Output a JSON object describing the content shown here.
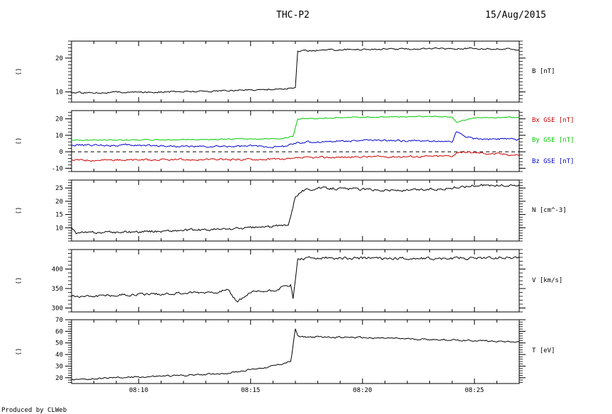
{
  "header": {
    "title": "THC-P2",
    "date": "15/Aug/2015"
  },
  "footer": {
    "produced_by": "Produced by CLWeb"
  },
  "colors": {
    "axes": "#000000",
    "red": "#cc0000",
    "green": "#00cc00",
    "blue": "#0000cc"
  },
  "chart_data": [
    {
      "type": "line",
      "ylabel_left": "()",
      "ylim": [
        7,
        25
      ],
      "yticks": [
        10,
        20
      ],
      "xlim": [
        "08:07",
        "08:27"
      ],
      "xticks": [
        "08:10",
        "08:15",
        "08:20",
        "08:25"
      ],
      "series": [
        {
          "name": "B [nT]",
          "color": "#000000",
          "x": [
            "08:07",
            "08:08",
            "08:09",
            "08:10",
            "08:11",
            "08:12",
            "08:13",
            "08:14",
            "08:15",
            "08:16",
            "08:16.8",
            "08:17.0",
            "08:17.1",
            "08:18",
            "08:19",
            "08:20",
            "08:21",
            "08:22",
            "08:23",
            "08:24",
            "08:25",
            "08:26",
            "08:27"
          ],
          "values": [
            9.8,
            9.8,
            9.9,
            9.9,
            10.0,
            10.1,
            10.2,
            10.4,
            10.6,
            10.8,
            11.0,
            11.2,
            22.0,
            22.3,
            22.5,
            22.6,
            22.6,
            22.7,
            22.8,
            22.8,
            22.8,
            22.7,
            22.6
          ],
          "noise": 0.4
        }
      ]
    },
    {
      "type": "line",
      "ylabel_left": "()",
      "ylim": [
        -12,
        25
      ],
      "yticks": [
        -10,
        0,
        10,
        20
      ],
      "zero_line": true,
      "xlim": [
        "08:07",
        "08:27"
      ],
      "xticks": [
        "08:10",
        "08:15",
        "08:20",
        "08:25"
      ],
      "series": [
        {
          "name": "Bx GSE [nT]",
          "color": "#cc0000",
          "x": [
            "08:07",
            "08:10",
            "08:13",
            "08:16",
            "08:16.9",
            "08:17.1",
            "08:20",
            "08:23",
            "08:24",
            "08:24.3",
            "08:27"
          ],
          "values": [
            -5.0,
            -5.0,
            -4.8,
            -4.5,
            -4.5,
            -3.8,
            -3.0,
            -2.8,
            -2.5,
            0.0,
            -2.0
          ],
          "noise": 1.0
        },
        {
          "name": "By GSE [nT]",
          "color": "#00cc00",
          "x": [
            "08:07",
            "08:10",
            "08:13",
            "08:15",
            "08:16.4",
            "08:16.9",
            "08:17.1",
            "08:20",
            "08:23",
            "08:24",
            "08:24.2",
            "08:25",
            "08:27"
          ],
          "values": [
            7.0,
            7.2,
            7.5,
            7.8,
            8.0,
            9.5,
            20.0,
            21.0,
            21.5,
            21.3,
            18.0,
            20.5,
            21.0
          ],
          "noise": 0.6
        },
        {
          "name": "Bz GSE [nT]",
          "color": "#0000cc",
          "x": [
            "08:07",
            "08:10",
            "08:13",
            "08:15",
            "08:16.4",
            "08:17.1",
            "08:20",
            "08:23",
            "08:24",
            "08:24.2",
            "08:24.5",
            "08:25",
            "08:27"
          ],
          "values": [
            4.0,
            4.0,
            3.0,
            3.5,
            3.0,
            5.5,
            7.0,
            6.5,
            6.0,
            12.5,
            10.0,
            8.0,
            7.5
          ],
          "noise": 1.0
        }
      ]
    },
    {
      "type": "line",
      "ylabel_left": "()",
      "ylim": [
        5,
        28
      ],
      "yticks": [
        10,
        15,
        20,
        25
      ],
      "xlim": [
        "08:07",
        "08:27"
      ],
      "xticks": [
        "08:10",
        "08:15",
        "08:20",
        "08:25"
      ],
      "series": [
        {
          "name": "N [cm^-3]",
          "color": "#000000",
          "x": [
            "08:07",
            "08:07.2",
            "08:10",
            "08:12",
            "08:14",
            "08:15",
            "08:16",
            "08:16.7",
            "08:17.0",
            "08:17.3",
            "08:18",
            "08:20",
            "08:22",
            "08:24",
            "08:25",
            "08:27"
          ],
          "values": [
            10.5,
            8.0,
            8.5,
            9.0,
            9.5,
            10.0,
            10.5,
            11.0,
            22.0,
            24.0,
            25.0,
            24.5,
            24.0,
            25.0,
            26.0,
            26.0
          ],
          "noise": 0.8
        }
      ]
    },
    {
      "type": "line",
      "ylabel_left": "()",
      "ylim": [
        290,
        450
      ],
      "yticks": [
        300,
        350,
        400
      ],
      "xlim": [
        "08:07",
        "08:27"
      ],
      "xticks": [
        "08:10",
        "08:15",
        "08:20",
        "08:25"
      ],
      "series": [
        {
          "name": "V [km/s]",
          "color": "#000000",
          "x": [
            "08:07",
            "08:10",
            "08:12",
            "08:13",
            "08:14",
            "08:14.4",
            "08:15",
            "08:16",
            "08:16.8",
            "08:16.9",
            "08:17.1",
            "08:18",
            "08:20",
            "08:22",
            "08:25",
            "08:27"
          ],
          "values": [
            330,
            335,
            338,
            340,
            345,
            315,
            340,
            345,
            360,
            320,
            425,
            428,
            428,
            427,
            428,
            430
          ],
          "noise": 6
        }
      ]
    },
    {
      "type": "line",
      "ylabel_left": "()",
      "ylim": [
        15,
        70
      ],
      "yticks": [
        20,
        30,
        40,
        50,
        60,
        70
      ],
      "xlim": [
        "08:07",
        "08:27"
      ],
      "xticks": [
        "08:10",
        "08:15",
        "08:20",
        "08:25"
      ],
      "series": [
        {
          "name": "T [eV]",
          "color": "#000000",
          "x": [
            "08:07",
            "08:09",
            "08:12",
            "08:14",
            "08:15",
            "08:16",
            "08:16.8",
            "08:17.0",
            "08:17.1",
            "08:17.5",
            "08:19",
            "08:21",
            "08:23",
            "08:25",
            "08:27"
          ],
          "values": [
            18,
            20,
            22,
            24,
            27,
            30,
            34,
            62,
            56,
            55,
            55,
            54,
            53,
            52,
            51
          ],
          "noise": 1.2
        }
      ]
    }
  ]
}
